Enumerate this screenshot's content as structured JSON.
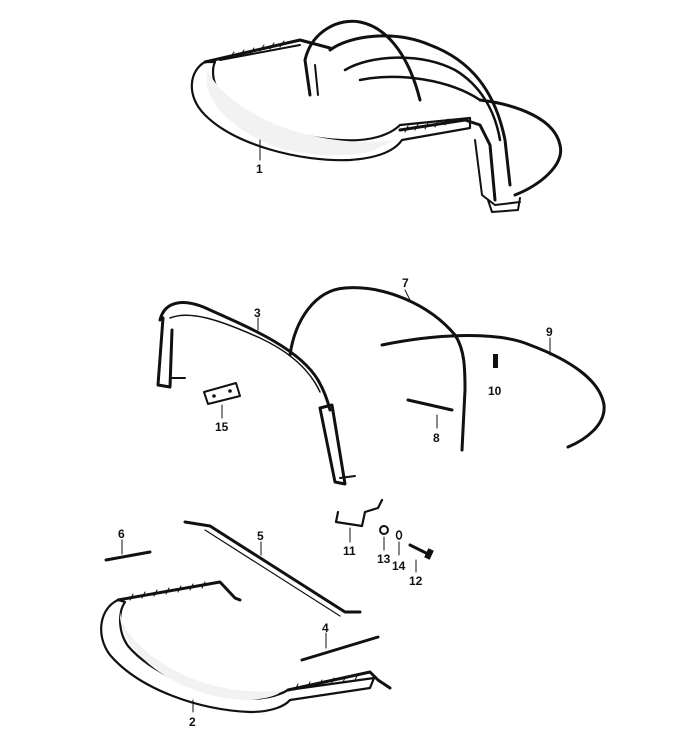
{
  "diagram": {
    "parts": [
      {
        "id": "1",
        "label": "1"
      },
      {
        "id": "2",
        "label": "2"
      },
      {
        "id": "3",
        "label": "3"
      },
      {
        "id": "4",
        "label": "4"
      },
      {
        "id": "5",
        "label": "5"
      },
      {
        "id": "6",
        "label": "6"
      },
      {
        "id": "7",
        "label": "7"
      },
      {
        "id": "8",
        "label": "8"
      },
      {
        "id": "9",
        "label": "9"
      },
      {
        "id": "10",
        "label": "10"
      },
      {
        "id": "11",
        "label": "11"
      },
      {
        "id": "12",
        "label": "12"
      },
      {
        "id": "13",
        "label": "13"
      },
      {
        "id": "14",
        "label": "14"
      },
      {
        "id": "15",
        "label": "15"
      }
    ]
  }
}
